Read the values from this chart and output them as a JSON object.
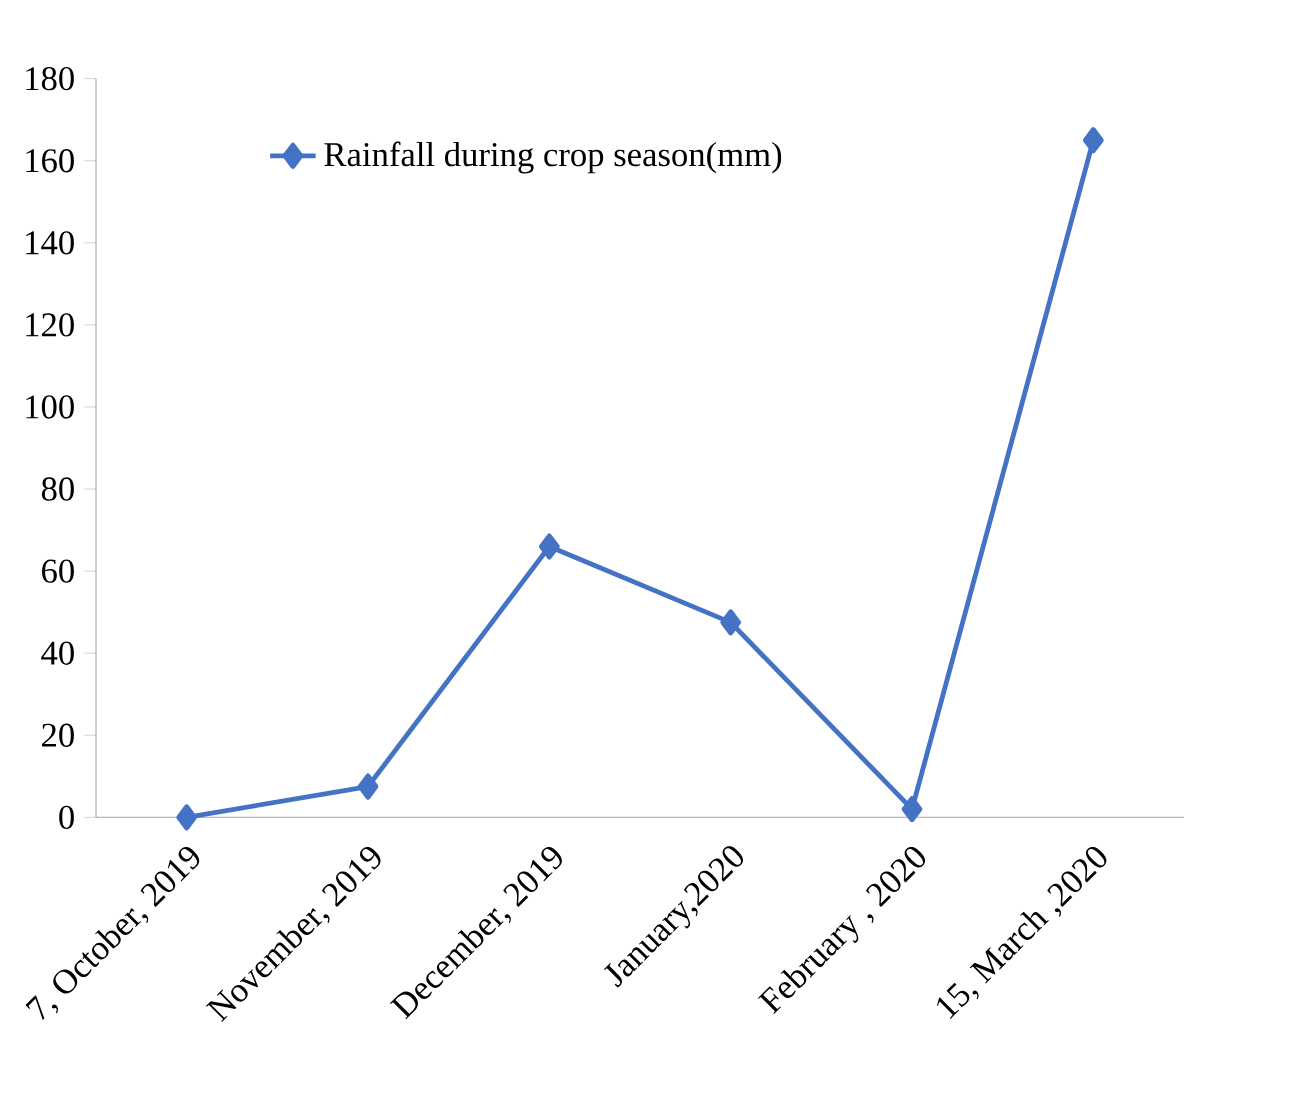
{
  "chart_data": {
    "type": "line",
    "categories": [
      "7, October, 2019",
      "November, 2019",
      "December, 2019",
      "January,2020",
      "February , 2020",
      "15, March ,2020"
    ],
    "series": [
      {
        "name": "Rainfall during  crop season(mm)",
        "color": "#4472c4",
        "values": [
          0,
          7.5,
          66,
          47.5,
          2,
          165
        ]
      }
    ],
    "ylim": [
      0,
      180
    ],
    "yticks": [
      0,
      20,
      40,
      60,
      80,
      100,
      120,
      140,
      160,
      180
    ],
    "marker": "diamond",
    "line_style": "solid",
    "legend": "top left",
    "grid": false
  }
}
